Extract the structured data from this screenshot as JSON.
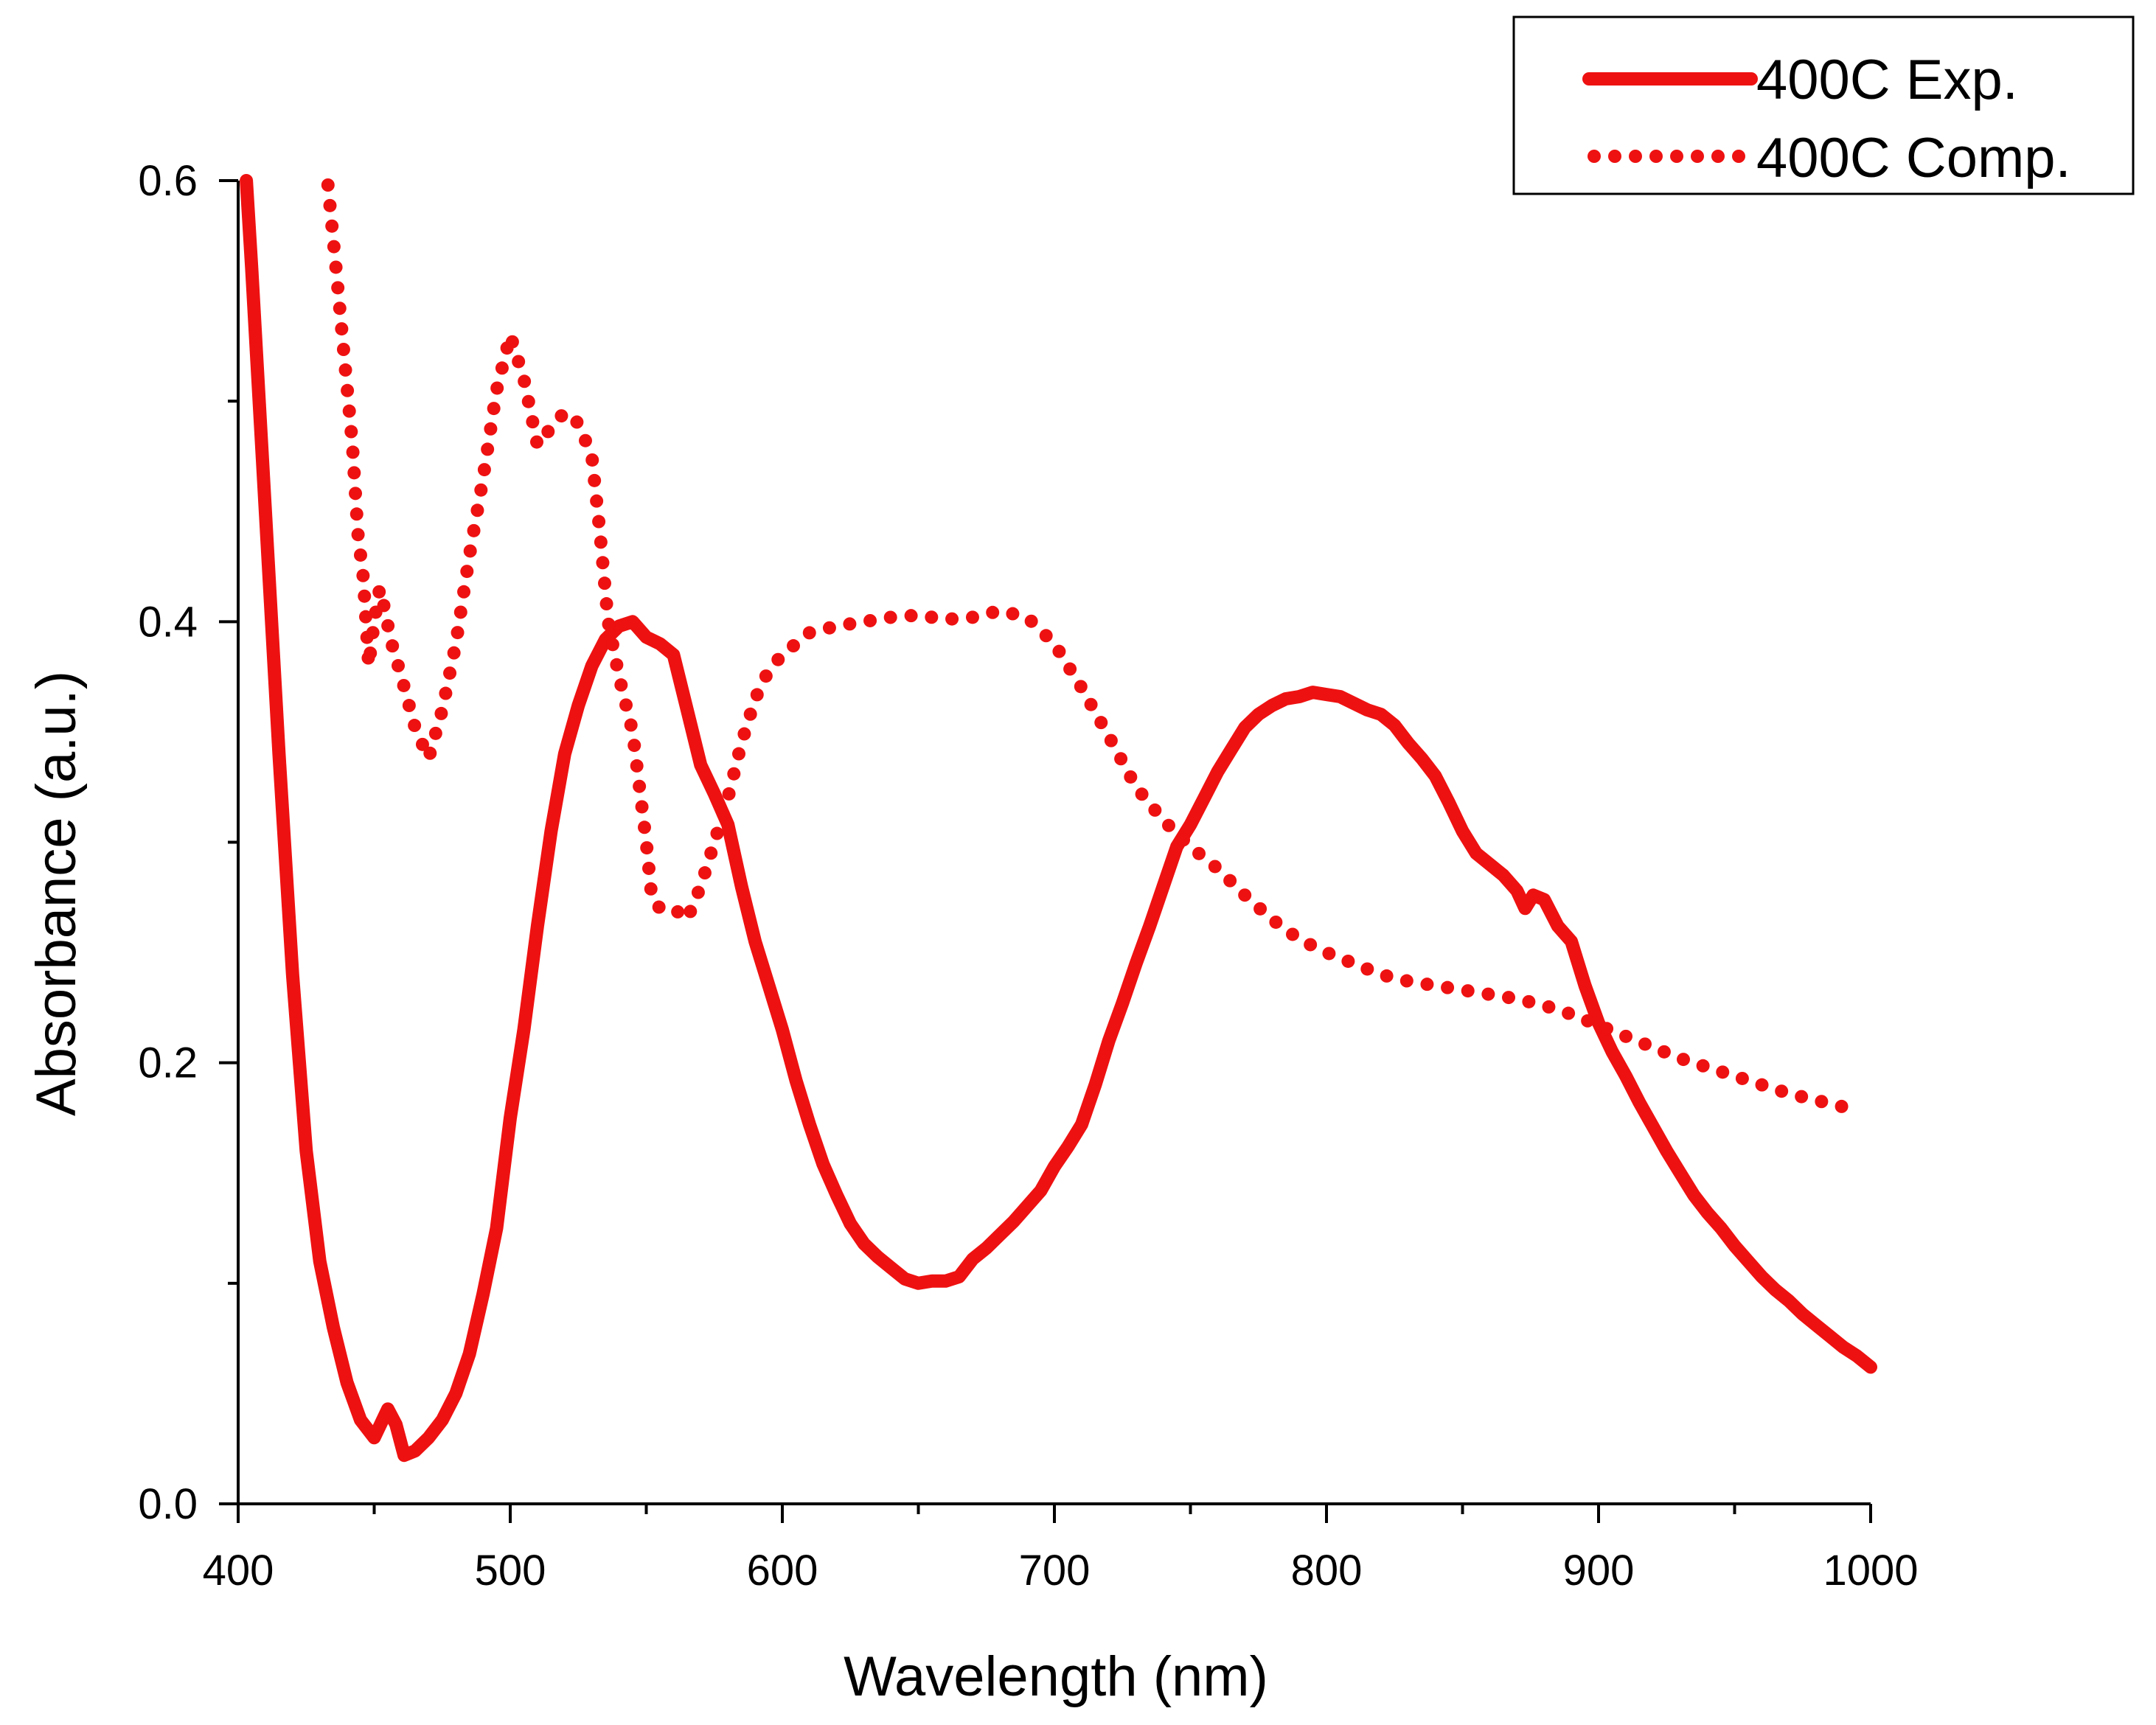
{
  "chart_data": {
    "type": "line",
    "title": "",
    "xlabel": "Wavelength (nm)",
    "ylabel": "Absorbance (a.u.)",
    "xlim": [
      400,
      1000
    ],
    "ylim": [
      0.0,
      0.6
    ],
    "x_ticks": [
      400,
      500,
      600,
      700,
      800,
      900,
      1000
    ],
    "x_tick_labels": [
      "400",
      "500",
      "600",
      "700",
      "800",
      "900",
      "1000"
    ],
    "y_ticks": [
      0.0,
      0.2,
      0.4,
      0.6
    ],
    "y_tick_labels": [
      "0.0",
      "0.2",
      "0.4",
      "0.6"
    ],
    "grid": false,
    "legend_position": "top-right",
    "series": [
      {
        "name": "400C Exp.",
        "style": "solid",
        "color": "#ee1111",
        "points": [
          [
            403,
            0.6
          ],
          [
            405,
            0.56
          ],
          [
            410,
            0.45
          ],
          [
            415,
            0.34
          ],
          [
            420,
            0.24
          ],
          [
            425,
            0.16
          ],
          [
            430,
            0.11
          ],
          [
            435,
            0.08
          ],
          [
            440,
            0.055
          ],
          [
            445,
            0.038
          ],
          [
            450,
            0.03
          ],
          [
            455,
            0.043
          ],
          [
            458,
            0.036
          ],
          [
            461,
            0.022
          ],
          [
            465,
            0.024
          ],
          [
            470,
            0.03
          ],
          [
            475,
            0.038
          ],
          [
            480,
            0.05
          ],
          [
            485,
            0.068
          ],
          [
            490,
            0.095
          ],
          [
            495,
            0.125
          ],
          [
            500,
            0.175
          ],
          [
            505,
            0.215
          ],
          [
            510,
            0.262
          ],
          [
            515,
            0.305
          ],
          [
            520,
            0.34
          ],
          [
            525,
            0.362
          ],
          [
            530,
            0.38
          ],
          [
            535,
            0.392
          ],
          [
            540,
            0.398
          ],
          [
            545,
            0.4
          ],
          [
            550,
            0.393
          ],
          [
            555,
            0.39
          ],
          [
            560,
            0.385
          ],
          [
            565,
            0.36
          ],
          [
            570,
            0.335
          ],
          [
            575,
            0.322
          ],
          [
            580,
            0.308
          ],
          [
            585,
            0.28
          ],
          [
            590,
            0.255
          ],
          [
            595,
            0.235
          ],
          [
            600,
            0.215
          ],
          [
            605,
            0.192
          ],
          [
            610,
            0.172
          ],
          [
            615,
            0.154
          ],
          [
            620,
            0.14
          ],
          [
            625,
            0.127
          ],
          [
            630,
            0.118
          ],
          [
            635,
            0.112
          ],
          [
            640,
            0.107
          ],
          [
            645,
            0.102
          ],
          [
            650,
            0.1
          ],
          [
            655,
            0.101
          ],
          [
            660,
            0.101
          ],
          [
            665,
            0.103
          ],
          [
            670,
            0.111
          ],
          [
            675,
            0.116
          ],
          [
            680,
            0.122
          ],
          [
            685,
            0.128
          ],
          [
            690,
            0.135
          ],
          [
            695,
            0.142
          ],
          [
            700,
            0.153
          ],
          [
            705,
            0.162
          ],
          [
            710,
            0.172
          ],
          [
            715,
            0.19
          ],
          [
            720,
            0.21
          ],
          [
            725,
            0.227
          ],
          [
            730,
            0.245
          ],
          [
            735,
            0.262
          ],
          [
            740,
            0.28
          ],
          [
            745,
            0.298
          ],
          [
            750,
            0.308
          ],
          [
            755,
            0.32
          ],
          [
            760,
            0.332
          ],
          [
            765,
            0.342
          ],
          [
            770,
            0.352
          ],
          [
            775,
            0.358
          ],
          [
            780,
            0.362
          ],
          [
            785,
            0.365
          ],
          [
            790,
            0.366
          ],
          [
            795,
            0.368
          ],
          [
            800,
            0.367
          ],
          [
            805,
            0.366
          ],
          [
            810,
            0.363
          ],
          [
            815,
            0.36
          ],
          [
            820,
            0.358
          ],
          [
            825,
            0.353
          ],
          [
            830,
            0.345
          ],
          [
            835,
            0.338
          ],
          [
            840,
            0.33
          ],
          [
            845,
            0.318
          ],
          [
            850,
            0.305
          ],
          [
            855,
            0.295
          ],
          [
            860,
            0.29
          ],
          [
            865,
            0.285
          ],
          [
            870,
            0.278
          ],
          [
            873,
            0.27
          ],
          [
            876,
            0.276
          ],
          [
            880,
            0.274
          ],
          [
            885,
            0.262
          ],
          [
            890,
            0.255
          ],
          [
            895,
            0.235
          ],
          [
            900,
            0.218
          ],
          [
            905,
            0.205
          ],
          [
            910,
            0.194
          ],
          [
            915,
            0.182
          ],
          [
            920,
            0.171
          ],
          [
            925,
            0.16
          ],
          [
            930,
            0.15
          ],
          [
            935,
            0.14
          ],
          [
            940,
            0.132
          ],
          [
            945,
            0.125
          ],
          [
            950,
            0.117
          ],
          [
            955,
            0.11
          ],
          [
            960,
            0.103
          ],
          [
            965,
            0.097
          ],
          [
            970,
            0.092
          ],
          [
            975,
            0.086
          ],
          [
            980,
            0.081
          ],
          [
            985,
            0.076
          ],
          [
            990,
            0.071
          ],
          [
            995,
            0.067
          ],
          [
            1000,
            0.062
          ]
        ]
      },
      {
        "name": "400C Comp.",
        "style": "dotted",
        "color": "#ee1111",
        "points": [
          [
            433,
            0.598
          ],
          [
            436,
            0.56
          ],
          [
            439,
            0.52
          ],
          [
            442,
            0.48
          ],
          [
            444,
            0.44
          ],
          [
            446,
            0.42
          ],
          [
            448,
            0.38
          ],
          [
            450,
            0.4
          ],
          [
            452,
            0.415
          ],
          [
            454,
            0.405
          ],
          [
            456,
            0.392
          ],
          [
            460,
            0.375
          ],
          [
            465,
            0.352
          ],
          [
            470,
            0.338
          ],
          [
            475,
            0.36
          ],
          [
            480,
            0.39
          ],
          [
            485,
            0.43
          ],
          [
            490,
            0.465
          ],
          [
            495,
            0.505
          ],
          [
            500,
            0.53
          ],
          [
            505,
            0.51
          ],
          [
            510,
            0.48
          ],
          [
            515,
            0.488
          ],
          [
            520,
            0.495
          ],
          [
            525,
            0.49
          ],
          [
            530,
            0.475
          ],
          [
            533,
            0.44
          ],
          [
            536,
            0.4
          ],
          [
            540,
            0.375
          ],
          [
            545,
            0.35
          ],
          [
            550,
            0.3
          ],
          [
            552,
            0.275
          ],
          [
            555,
            0.27
          ],
          [
            560,
            0.27
          ],
          [
            565,
            0.265
          ],
          [
            570,
            0.28
          ],
          [
            575,
            0.3
          ],
          [
            580,
            0.32
          ],
          [
            585,
            0.345
          ],
          [
            590,
            0.365
          ],
          [
            595,
            0.378
          ],
          [
            600,
            0.385
          ],
          [
            610,
            0.395
          ],
          [
            620,
            0.398
          ],
          [
            630,
            0.4
          ],
          [
            640,
            0.402
          ],
          [
            650,
            0.403
          ],
          [
            660,
            0.401
          ],
          [
            670,
            0.402
          ],
          [
            680,
            0.405
          ],
          [
            690,
            0.402
          ],
          [
            700,
            0.39
          ],
          [
            710,
            0.37
          ],
          [
            720,
            0.348
          ],
          [
            730,
            0.325
          ],
          [
            740,
            0.31
          ],
          [
            750,
            0.298
          ],
          [
            760,
            0.288
          ],
          [
            770,
            0.276
          ],
          [
            780,
            0.265
          ],
          [
            790,
            0.256
          ],
          [
            800,
            0.25
          ],
          [
            810,
            0.245
          ],
          [
            820,
            0.24
          ],
          [
            830,
            0.237
          ],
          [
            840,
            0.235
          ],
          [
            850,
            0.233
          ],
          [
            860,
            0.231
          ],
          [
            870,
            0.229
          ],
          [
            880,
            0.226
          ],
          [
            890,
            0.222
          ],
          [
            900,
            0.217
          ],
          [
            910,
            0.212
          ],
          [
            920,
            0.207
          ],
          [
            930,
            0.202
          ],
          [
            940,
            0.198
          ],
          [
            950,
            0.194
          ],
          [
            960,
            0.19
          ],
          [
            970,
            0.186
          ],
          [
            980,
            0.183
          ],
          [
            990,
            0.18
          ],
          [
            995,
            0.178
          ]
        ]
      }
    ]
  },
  "colors": {
    "series": "#ee1111",
    "axis": "#000000",
    "background": "#ffffff"
  }
}
